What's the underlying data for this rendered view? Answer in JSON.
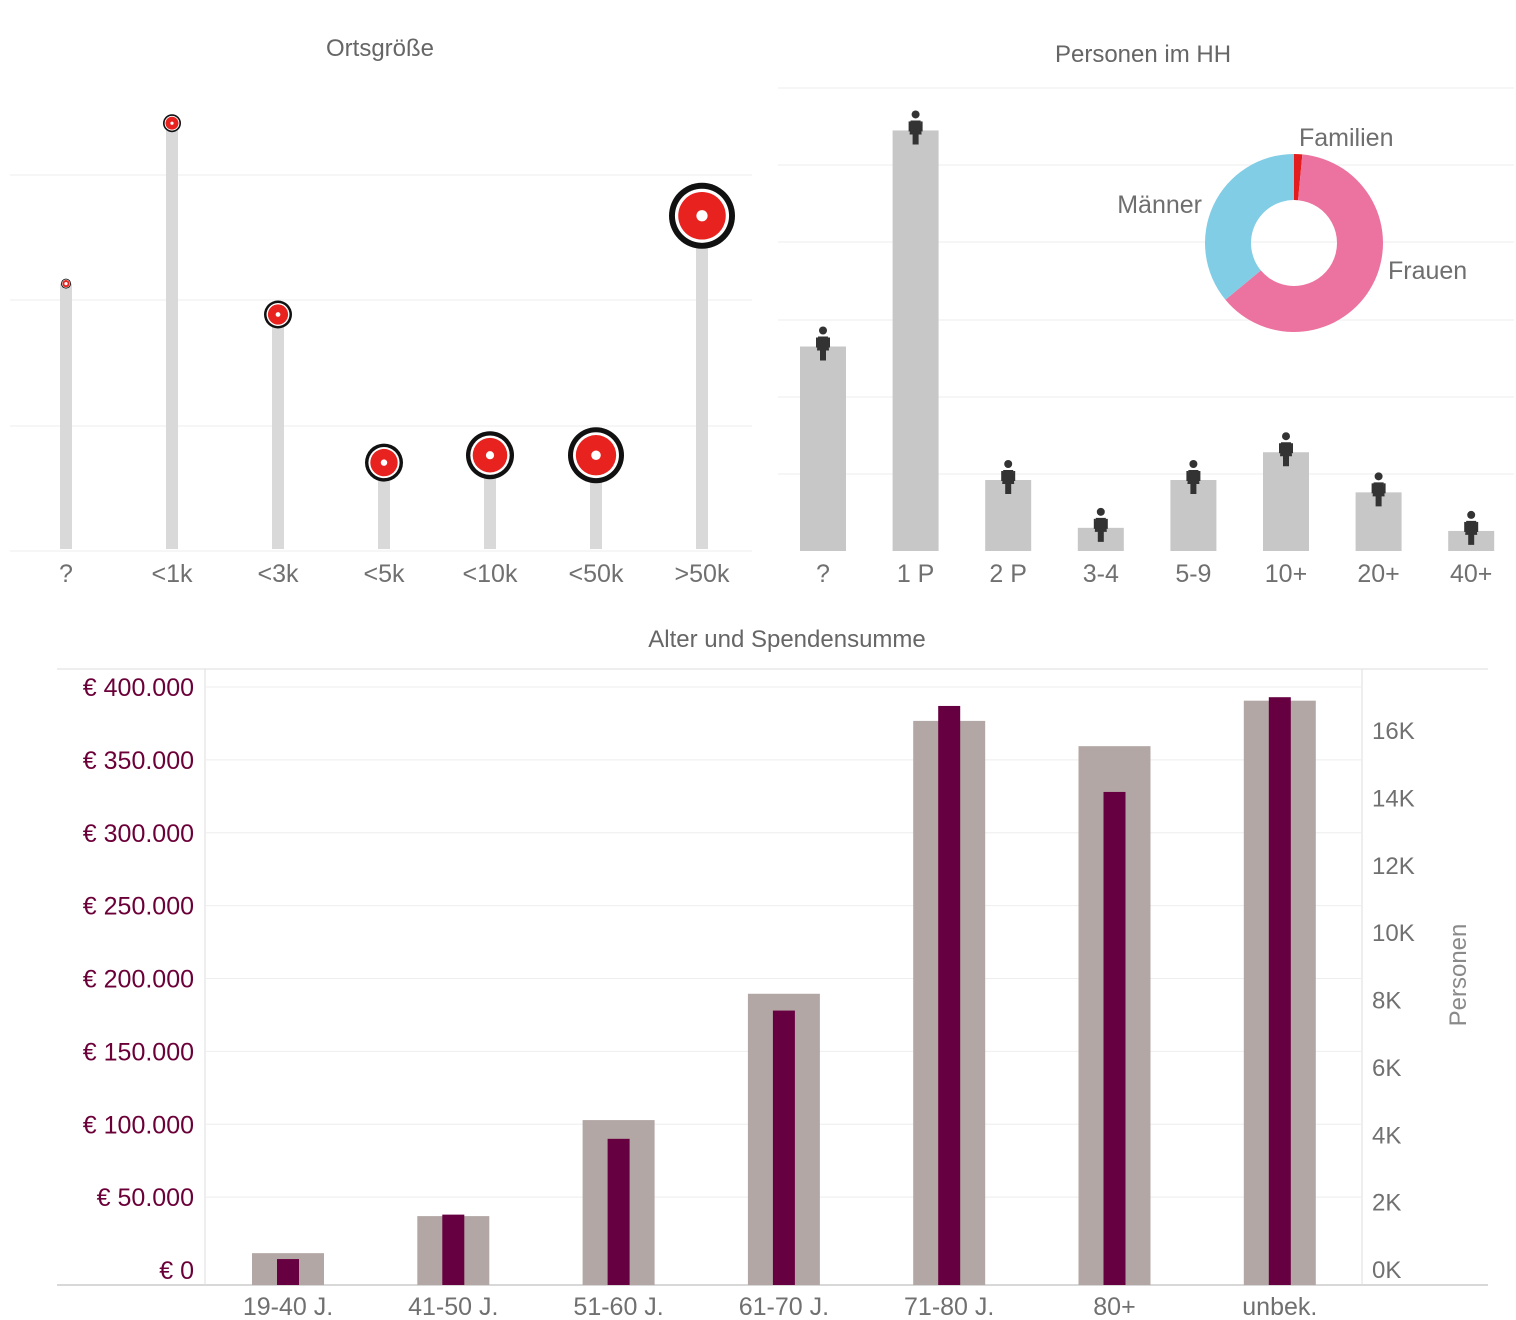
{
  "chart_data": [
    {
      "type": "lollipop",
      "title": "Ortsgröße",
      "categories": [
        "?",
        "<1k",
        "<3k",
        "<5k",
        "<10k",
        "<50k",
        ">50k"
      ],
      "values": [
        2.15,
        3.45,
        1.9,
        0.7,
        0.76,
        0.76,
        2.7
      ],
      "ylim": [
        0,
        3.8
      ],
      "grid": true,
      "colors": {
        "stem": "#d9d9d9",
        "marker": "#e8221f",
        "ring": "#111111"
      }
    },
    {
      "type": "bar",
      "title": "Personen im HH",
      "categories": [
        "?",
        "1 P",
        "2 P",
        "3-4",
        "5-9",
        "10+",
        "20+",
        "40+"
      ],
      "values": [
        2.65,
        5.45,
        0.92,
        0.3,
        0.92,
        1.28,
        0.76,
        0.26
      ],
      "ylim": [
        0,
        6
      ],
      "grid": true,
      "colors": {
        "bar": "#c7c7c7",
        "icon": "#333333"
      }
    },
    {
      "type": "pie",
      "labels": [
        "Familien",
        "Frauen",
        "Männer"
      ],
      "values": [
        1.5,
        62.5,
        36
      ],
      "colors": [
        "#e31d1d",
        "#ec73a0",
        "#80cde5"
      ],
      "legend": "labels next to slices"
    },
    {
      "type": "bar",
      "title": "Alter und Spendensumme",
      "categories": [
        "19-40 J.",
        "41-50 J.",
        "51-60 J.",
        "61-70 J.",
        "71-80 J.",
        "80+",
        "unbek."
      ],
      "series": [
        {
          "values": [
            500,
            1600,
            4450,
            8200,
            16300,
            15550,
            16900
          ],
          "axis": "right",
          "color": "#b3a7a5"
        },
        {
          "values": [
            7500,
            38000,
            90000,
            178000,
            387000,
            328000,
            393000
          ],
          "axis": "left",
          "color": "#660040"
        }
      ],
      "y_left": {
        "ylim": [
          0,
          400000
        ],
        "ticks": [
          0,
          50000,
          100000,
          150000,
          200000,
          250000,
          300000,
          350000,
          400000
        ],
        "tick_labels": [
          "€ 0",
          "€ 50.000",
          "€ 100.000",
          "€ 150.000",
          "€ 200.000",
          "€ 250.000",
          "€ 300.000",
          "€ 350.000",
          "€ 400.000"
        ]
      },
      "y_right": {
        "label": "Personen",
        "ticks": [
          0,
          2000,
          4000,
          6000,
          8000,
          10000,
          12000,
          14000,
          16000
        ],
        "tick_labels": [
          "0K",
          "2K",
          "4K",
          "6K",
          "8K",
          "10K",
          "12K",
          "14K",
          "16K"
        ]
      },
      "grid": true
    }
  ]
}
